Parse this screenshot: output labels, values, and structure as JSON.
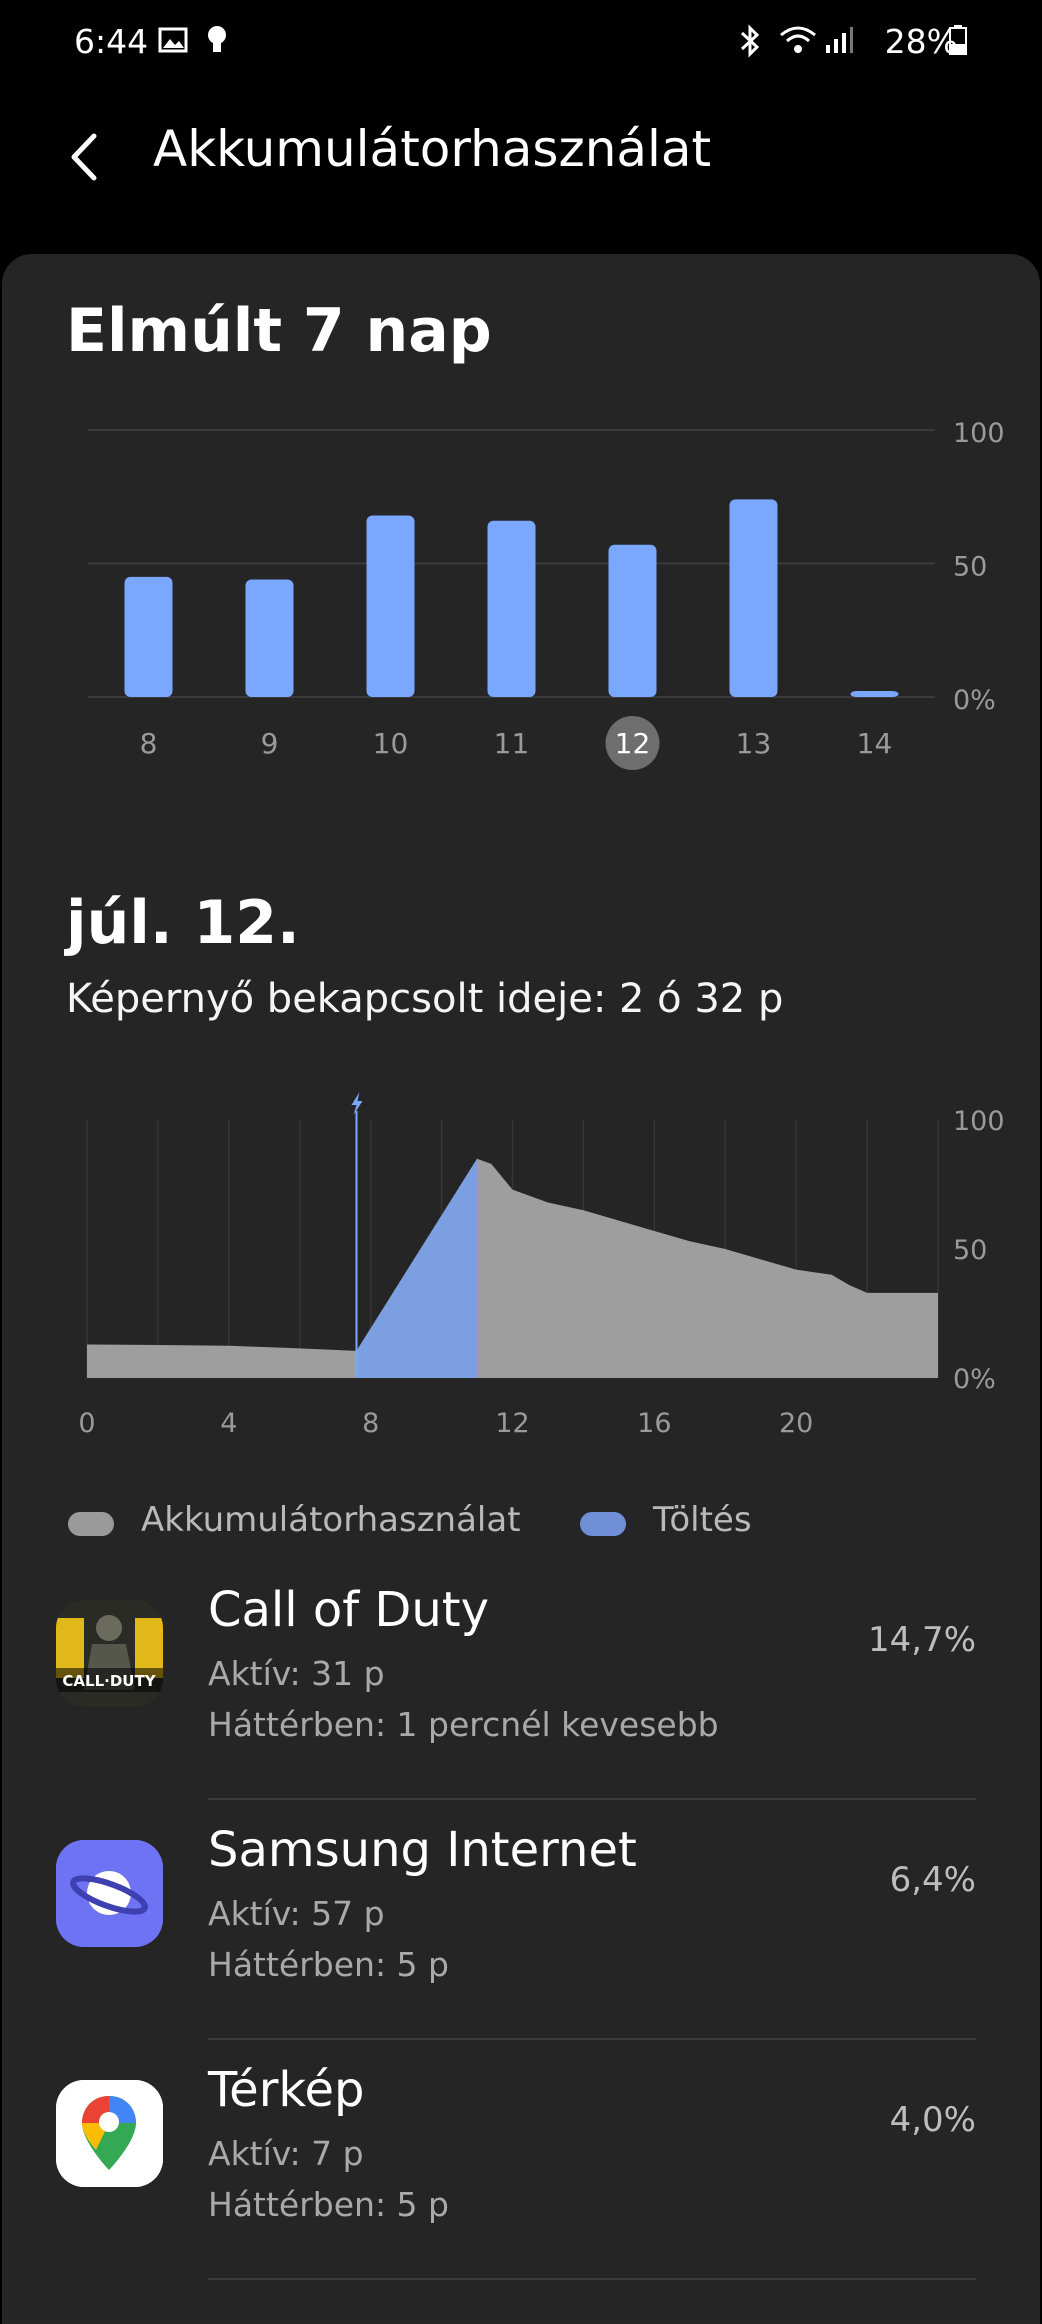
{
  "status_bar": {
    "time": "6:44",
    "battery": "28%",
    "icons": [
      "gallery-icon",
      "bulb-icon",
      "bluetooth-icon",
      "wifi-icon",
      "signal-icon",
      "battery-icon"
    ]
  },
  "app_bar": {
    "title": "Akkumulátorhasználat",
    "back_icon": "back-arrow-icon"
  },
  "week_section": {
    "heading": "Elmúlt 7 nap",
    "selected_day": "12"
  },
  "day_section": {
    "date": "júl. 12.",
    "screen_time": "Képernyő bekapcsolt ideje: 2 ó 32 p"
  },
  "legend": {
    "usage": "Akkumulátorhasználat",
    "charging": "Töltés"
  },
  "colors": {
    "bar": "#7aa7ff",
    "usage_area": "#9e9e9e",
    "charging_area": "#7b9fe0",
    "legend_usage": "#9a9a9a",
    "legend_charging": "#6f8fd6",
    "background": "#252525"
  },
  "apps": [
    {
      "name": "Call of Duty",
      "active": "Aktív: 31 p",
      "background": "Háttérben: 1 percnél kevesebb",
      "percent": "14,7%",
      "icon": "call-of-duty-icon"
    },
    {
      "name": "Samsung Internet",
      "active": "Aktív: 57 p",
      "background": "Háttérben: 5 p",
      "percent": "6,4%",
      "icon": "samsung-internet-icon"
    },
    {
      "name": "Térkép",
      "active": "Aktív: 7 p",
      "background": "Háttérben: 5 p",
      "percent": "4,0%",
      "icon": "maps-icon"
    }
  ],
  "chart_data": [
    {
      "type": "bar",
      "categories": [
        "8",
        "9",
        "10",
        "11",
        "12",
        "13",
        "14"
      ],
      "values": [
        45,
        44,
        68,
        66,
        57,
        74,
        2
      ],
      "ylim": [
        0,
        100
      ],
      "y_ticks": [
        "100",
        "50",
        "0%"
      ],
      "selected": "12",
      "grid": true
    },
    {
      "type": "area",
      "x_ticks": [
        "0",
        "4",
        "8",
        "12",
        "16",
        "20"
      ],
      "y_ticks": [
        "100",
        "50",
        "0%"
      ],
      "ylim": [
        0,
        100
      ],
      "xlim": [
        0,
        24
      ],
      "charging_marker_hour": 7.6,
      "series": [
        {
          "name": "Akkumulátorhasználat",
          "x": [
            0,
            2,
            4,
            6,
            7.6,
            11,
            11.4,
            12,
            13,
            14,
            15,
            16,
            17,
            18,
            19,
            20,
            20.5,
            21,
            21.5,
            22,
            24
          ],
          "y": [
            13,
            12.8,
            12.5,
            11.5,
            10.5,
            85,
            83,
            73,
            68,
            65,
            61,
            57,
            53,
            50,
            46,
            42,
            41,
            40,
            36,
            33,
            33
          ]
        },
        {
          "name": "Töltés",
          "x": [
            7.6,
            11
          ],
          "y": [
            10.5,
            85
          ]
        }
      ]
    }
  ]
}
